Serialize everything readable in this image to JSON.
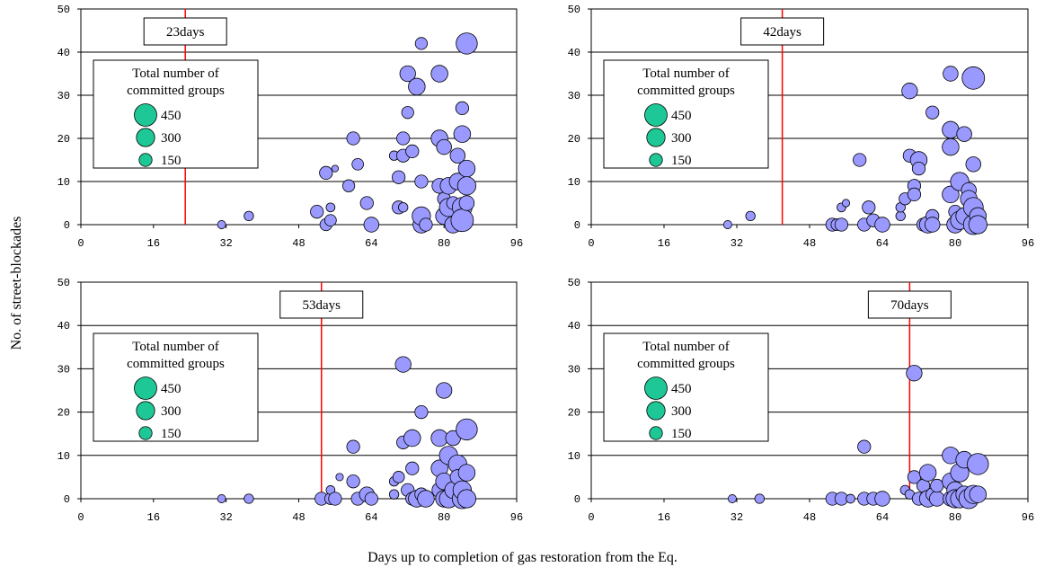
{
  "figure": {
    "ylabel": "No. of street-blockades",
    "xlabel": "Days up to completion of gas restoration from the Eq."
  },
  "colors": {
    "bubble_fill": "#9999ff",
    "legend_fill": "#1ec896",
    "marker_line": "#ff0000",
    "grid": "#000000"
  },
  "chart_data": [
    {
      "type": "scatter",
      "panel": "top-left",
      "marker_label": "23days",
      "marker_day": 23,
      "xlim": [
        0,
        96
      ],
      "ylim": [
        0,
        50
      ],
      "xticks": [
        0,
        16,
        32,
        48,
        64,
        80,
        96
      ],
      "yticks": [
        0,
        10,
        20,
        30,
        40,
        50
      ],
      "legend": {
        "title_line1": "Total number of",
        "title_line2": "committed groups",
        "sizes": [
          450,
          300,
          150
        ]
      },
      "points": [
        [
          31,
          0,
          60
        ],
        [
          37,
          2,
          80
        ],
        [
          52,
          3,
          150
        ],
        [
          54,
          0,
          130
        ],
        [
          54,
          12,
          150
        ],
        [
          55,
          4,
          70
        ],
        [
          55,
          1,
          120
        ],
        [
          56,
          13,
          40
        ],
        [
          59,
          9,
          130
        ],
        [
          60,
          20,
          150
        ],
        [
          61,
          14,
          120
        ],
        [
          63,
          5,
          150
        ],
        [
          64,
          0,
          200
        ],
        [
          69,
          16,
          80
        ],
        [
          70,
          4,
          150
        ],
        [
          70,
          11,
          150
        ],
        [
          71,
          4,
          80
        ],
        [
          71,
          16,
          150
        ],
        [
          71,
          20,
          150
        ],
        [
          72,
          35,
          220
        ],
        [
          72,
          26,
          130
        ],
        [
          73,
          17,
          150
        ],
        [
          74,
          32,
          250
        ],
        [
          75,
          10,
          150
        ],
        [
          75,
          0,
          250
        ],
        [
          75,
          2,
          300
        ],
        [
          75,
          42,
          130
        ],
        [
          76,
          0,
          150
        ],
        [
          79,
          35,
          250
        ],
        [
          79,
          20,
          250
        ],
        [
          79,
          9,
          200
        ],
        [
          80,
          6,
          150
        ],
        [
          80,
          18,
          200
        ],
        [
          80,
          2,
          250
        ],
        [
          81,
          9,
          250
        ],
        [
          81,
          4,
          300
        ],
        [
          82,
          0,
          250
        ],
        [
          82,
          5,
          150
        ],
        [
          83,
          16,
          200
        ],
        [
          83,
          10,
          250
        ],
        [
          84,
          4,
          350
        ],
        [
          84,
          27,
          150
        ],
        [
          84,
          21,
          250
        ],
        [
          84,
          1,
          450
        ],
        [
          85,
          42,
          400
        ],
        [
          85,
          13,
          250
        ],
        [
          85,
          9,
          300
        ],
        [
          85,
          5,
          200
        ]
      ]
    },
    {
      "type": "scatter",
      "panel": "top-right",
      "marker_label": "42days",
      "marker_day": 42,
      "xlim": [
        0,
        96
      ],
      "ylim": [
        0,
        50
      ],
      "xticks": [
        0,
        16,
        32,
        48,
        64,
        80,
        96
      ],
      "yticks": [
        0,
        10,
        20,
        30,
        40,
        50
      ],
      "legend": {
        "title_line1": "Total number of",
        "title_line2": "committed groups",
        "sizes": [
          450,
          300,
          150
        ]
      },
      "points": [
        [
          30,
          0,
          60
        ],
        [
          35,
          2,
          80
        ],
        [
          53,
          0,
          150
        ],
        [
          54,
          0,
          120
        ],
        [
          55,
          4,
          70
        ],
        [
          55,
          0,
          150
        ],
        [
          56,
          5,
          50
        ],
        [
          59,
          15,
          150
        ],
        [
          60,
          0,
          150
        ],
        [
          61,
          4,
          150
        ],
        [
          62,
          1,
          150
        ],
        [
          64,
          0,
          200
        ],
        [
          68,
          2,
          80
        ],
        [
          68,
          4,
          80
        ],
        [
          69,
          6,
          130
        ],
        [
          70,
          31,
          220
        ],
        [
          70,
          16,
          150
        ],
        [
          71,
          9,
          150
        ],
        [
          71,
          7,
          150
        ],
        [
          72,
          15,
          250
        ],
        [
          72,
          13,
          150
        ],
        [
          73,
          0,
          150
        ],
        [
          74,
          0,
          250
        ],
        [
          75,
          26,
          150
        ],
        [
          75,
          2,
          150
        ],
        [
          75,
          0,
          200
        ],
        [
          79,
          35,
          200
        ],
        [
          79,
          18,
          250
        ],
        [
          79,
          22,
          250
        ],
        [
          79,
          7,
          250
        ],
        [
          80,
          0,
          250
        ],
        [
          80,
          3,
          150
        ],
        [
          81,
          10,
          300
        ],
        [
          81,
          1,
          300
        ],
        [
          82,
          2,
          250
        ],
        [
          82,
          21,
          200
        ],
        [
          83,
          8,
          200
        ],
        [
          83,
          6,
          250
        ],
        [
          84,
          0,
          350
        ],
        [
          84,
          14,
          200
        ],
        [
          84,
          34,
          450
        ],
        [
          84,
          4,
          350
        ],
        [
          85,
          2,
          250
        ],
        [
          85,
          0,
          300
        ]
      ]
    },
    {
      "type": "scatter",
      "panel": "bottom-left",
      "marker_label": "53days",
      "marker_day": 53,
      "xlim": [
        0,
        96
      ],
      "ylim": [
        0,
        50
      ],
      "xticks": [
        0,
        16,
        32,
        48,
        64,
        80,
        96
      ],
      "yticks": [
        0,
        10,
        20,
        30,
        40,
        50
      ],
      "legend": {
        "title_line1": "Total number of",
        "title_line2": "committed groups",
        "sizes": [
          450,
          300,
          150
        ]
      },
      "points": [
        [
          31,
          0,
          60
        ],
        [
          37,
          0,
          80
        ],
        [
          53,
          0,
          150
        ],
        [
          55,
          0,
          120
        ],
        [
          55,
          2,
          70
        ],
        [
          56,
          0,
          150
        ],
        [
          57,
          5,
          50
        ],
        [
          60,
          12,
          150
        ],
        [
          60,
          4,
          150
        ],
        [
          61,
          0,
          150
        ],
        [
          63,
          1,
          200
        ],
        [
          64,
          0,
          150
        ],
        [
          69,
          1,
          80
        ],
        [
          69,
          4,
          80
        ],
        [
          70,
          5,
          120
        ],
        [
          71,
          31,
          220
        ],
        [
          71,
          13,
          150
        ],
        [
          72,
          2,
          150
        ],
        [
          73,
          7,
          150
        ],
        [
          73,
          14,
          250
        ],
        [
          73,
          0,
          150
        ],
        [
          74,
          0,
          250
        ],
        [
          75,
          1,
          150
        ],
        [
          75,
          20,
          150
        ],
        [
          76,
          0,
          250
        ],
        [
          79,
          2,
          200
        ],
        [
          79,
          14,
          250
        ],
        [
          79,
          7,
          250
        ],
        [
          80,
          25,
          220
        ],
        [
          80,
          0,
          250
        ],
        [
          80,
          4,
          250
        ],
        [
          81,
          10,
          300
        ],
        [
          81,
          0,
          300
        ],
        [
          82,
          2,
          250
        ],
        [
          82,
          14,
          200
        ],
        [
          83,
          8,
          300
        ],
        [
          83,
          5,
          200
        ],
        [
          84,
          0,
          350
        ],
        [
          84,
          2,
          300
        ],
        [
          85,
          16,
          400
        ],
        [
          85,
          6,
          250
        ],
        [
          85,
          0,
          300
        ]
      ]
    },
    {
      "type": "scatter",
      "panel": "bottom-right",
      "marker_label": "70days",
      "marker_day": 70,
      "xlim": [
        0,
        96
      ],
      "ylim": [
        0,
        50
      ],
      "xticks": [
        0,
        16,
        32,
        48,
        64,
        80,
        96
      ],
      "yticks": [
        0,
        10,
        20,
        30,
        40,
        50
      ],
      "legend": {
        "title_line1": "Total number of",
        "title_line2": "committed groups",
        "sizes": [
          450,
          300,
          150
        ]
      },
      "points": [
        [
          31,
          0,
          60
        ],
        [
          37,
          0,
          80
        ],
        [
          53,
          0,
          150
        ],
        [
          55,
          0,
          150
        ],
        [
          57,
          0,
          70
        ],
        [
          60,
          12,
          150
        ],
        [
          60,
          0,
          150
        ],
        [
          62,
          0,
          150
        ],
        [
          64,
          0,
          200
        ],
        [
          69,
          2,
          80
        ],
        [
          70,
          1,
          80
        ],
        [
          71,
          5,
          150
        ],
        [
          71,
          29,
          220
        ],
        [
          72,
          0,
          150
        ],
        [
          73,
          3,
          150
        ],
        [
          74,
          6,
          250
        ],
        [
          74,
          0,
          250
        ],
        [
          75,
          1,
          150
        ],
        [
          76,
          0,
          200
        ],
        [
          76,
          3,
          150
        ],
        [
          79,
          10,
          250
        ],
        [
          79,
          4,
          250
        ],
        [
          79,
          0,
          200
        ],
        [
          80,
          2,
          250
        ],
        [
          80,
          0,
          300
        ],
        [
          81,
          6,
          300
        ],
        [
          81,
          0,
          300
        ],
        [
          82,
          1,
          250
        ],
        [
          82,
          9,
          250
        ],
        [
          83,
          0,
          350
        ],
        [
          84,
          1,
          300
        ],
        [
          85,
          8,
          400
        ],
        [
          85,
          1,
          250
        ]
      ]
    }
  ]
}
